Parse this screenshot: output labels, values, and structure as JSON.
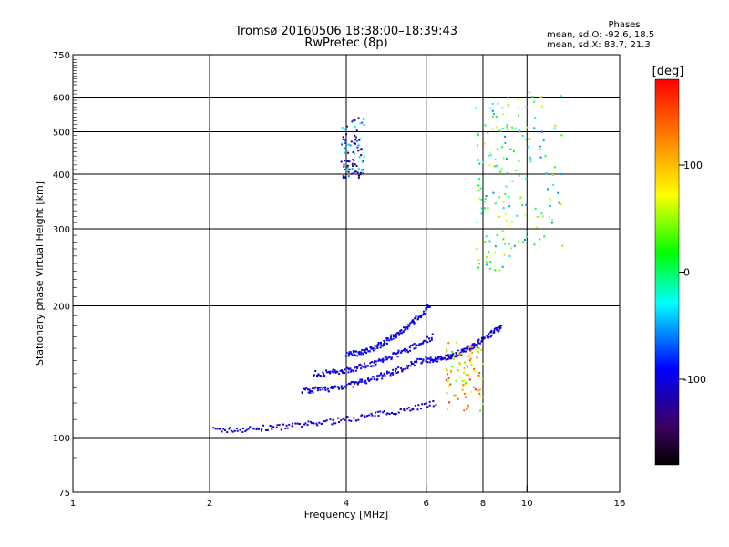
{
  "title_line1": "Tromsø 20160506 18:38:00–18:39:43",
  "title_line2": "RwPretec (8p)",
  "phase_stats": {
    "heading": "Phases",
    "line_o": "mean, sd,O: -92.6, 18.5",
    "line_x": "mean, sd,X: 83.7, 21.3"
  },
  "colorbar": {
    "label": "[deg]",
    "ticks": [
      {
        "value": 100,
        "label": "100"
      },
      {
        "value": 0,
        "label": "0"
      },
      {
        "value": -100,
        "label": "-100"
      }
    ],
    "range": [
      -180,
      180
    ]
  },
  "chart_data": {
    "type": "scatter",
    "title": "Tromsø 20160506 18:38:00–18:39:43",
    "subtitle": "RwPretec (8p)",
    "xlabel": "Frequency [MHz]",
    "ylabel": "Stationary phase Virtual Height [km]",
    "xscale": "log",
    "yscale": "log",
    "xlim": [
      1,
      16
    ],
    "ylim": [
      75,
      750
    ],
    "x_ticks": [
      1,
      2,
      4,
      6,
      8,
      10,
      16
    ],
    "x_tick_labels": [
      "1",
      "2",
      "4",
      "6",
      "8",
      "10",
      "16"
    ],
    "y_ticks": [
      75,
      100,
      200,
      300,
      400,
      500,
      600,
      750
    ],
    "y_tick_labels": [
      "75",
      "100",
      "200",
      "300",
      "400",
      "500",
      "600",
      "750"
    ],
    "grid_x": [
      2,
      4,
      6,
      8,
      10
    ],
    "grid_y": [
      100,
      200,
      300,
      400,
      500,
      600
    ],
    "color_variable": "Phase [deg]",
    "traces": [
      {
        "f_start": 2.05,
        "f_end": 6.3,
        "h_start": 104,
        "h_end": 120,
        "phase": -105
      },
      {
        "f_start": 3.2,
        "f_end": 6.0,
        "h_start": 128,
        "h_end": 152,
        "phase": -100
      },
      {
        "f_start": 3.4,
        "f_end": 6.2,
        "h_start": 140,
        "h_end": 170,
        "phase": -98
      },
      {
        "f_start": 4.0,
        "f_end": 6.1,
        "h_start": 155,
        "h_end": 200,
        "phase": -95
      },
      {
        "f_start": 6.0,
        "f_end": 8.8,
        "h_start": 150,
        "h_end": 180,
        "phase": -100
      }
    ],
    "clusters": [
      {
        "f_range": [
          3.9,
          4.4
        ],
        "h_range": [
          390,
          540
        ],
        "phase": -95
      },
      {
        "f_range": [
          6.6,
          8.0
        ],
        "h_range": [
          115,
          165
        ],
        "phase": 95
      },
      {
        "f_range": [
          7.7,
          9.2
        ],
        "h_range": [
          240,
          600
        ],
        "phase": 10
      },
      {
        "f_range": [
          8.8,
          12.0
        ],
        "h_range": [
          270,
          620
        ],
        "phase": 0
      }
    ]
  }
}
